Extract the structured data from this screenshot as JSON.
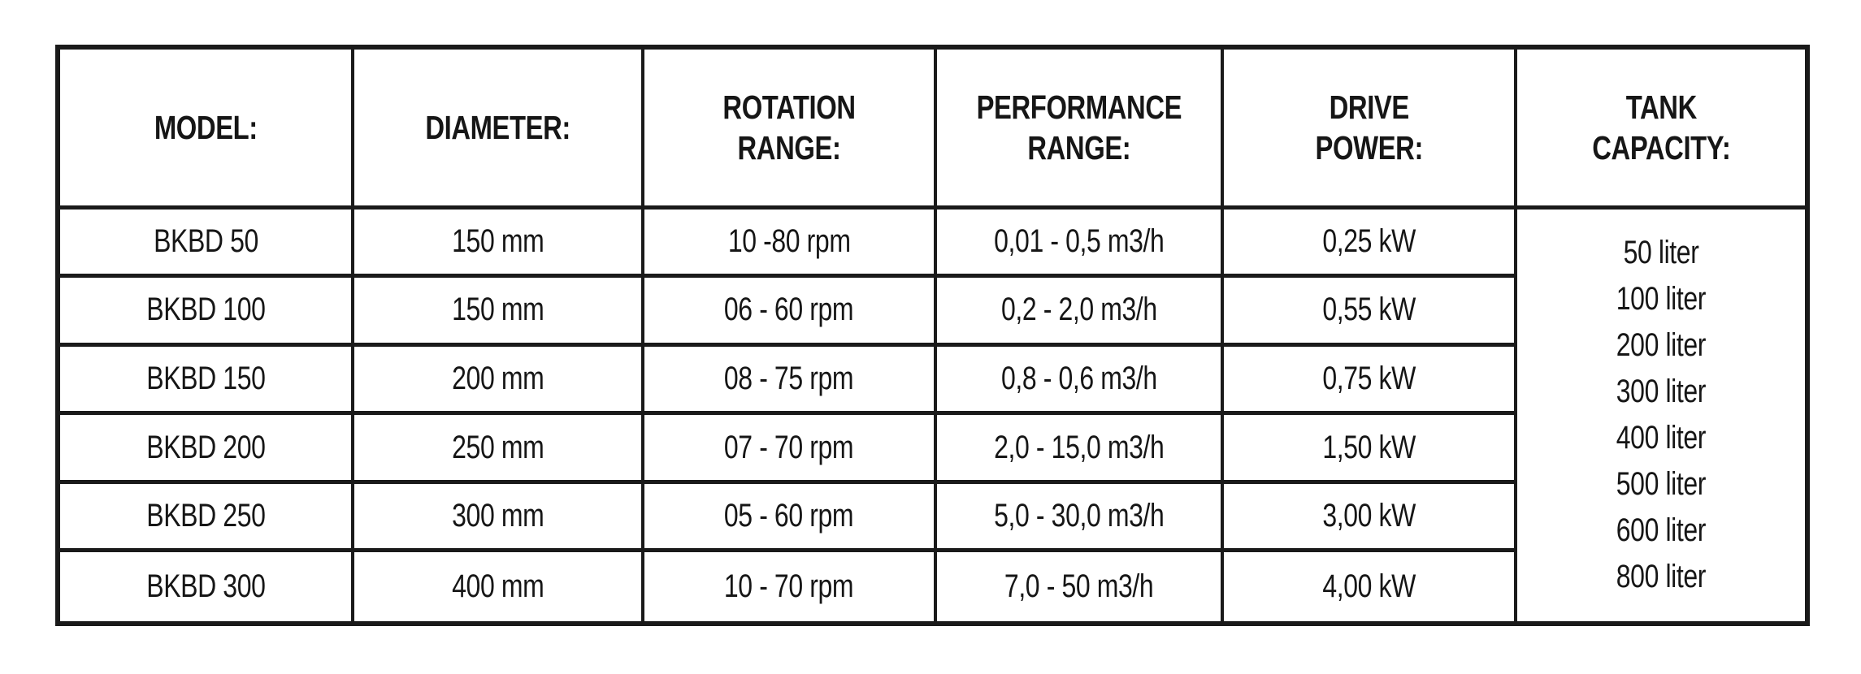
{
  "chart_data": {
    "type": "table",
    "title": "BKBD mixer specification table",
    "columns": [
      "MODEL:",
      "DIAMETER:",
      "ROTATION RANGE:",
      "PERFORMANCE RANGE:",
      "DRIVE POWER:",
      "TANK CAPACITY:"
    ],
    "rows": [
      [
        "BKBD 50",
        "150 mm",
        "10 -80 rpm",
        "0,01 - 0,5 m3/h",
        "0,25 kW"
      ],
      [
        "BKBD 100",
        "150 mm",
        "06 - 60 rpm",
        "0,2 - 2,0 m3/h",
        "0,55 kW"
      ],
      [
        "BKBD 150",
        "200 mm",
        "08 - 75 rpm",
        "0,8 - 0,6 m3/h",
        "0,75 kW"
      ],
      [
        "BKBD 200",
        "250 mm",
        "07 - 70 rpm",
        "2,0 - 15,0 m3/h",
        "1,50 kW"
      ],
      [
        "BKBD 250",
        "300 mm",
        "05 - 60 rpm",
        "5,0 - 30,0 m3/h",
        "3,00 kW"
      ],
      [
        "BKBD 300",
        "400 mm",
        "10 - 70 rpm",
        "7,0 - 50 m3/h",
        "4,00 kW"
      ]
    ],
    "tank_capacity_list": [
      "50 liter",
      "100 liter",
      "200 liter",
      "300 liter",
      "400 liter",
      "500 liter",
      "600 liter",
      "800 liter"
    ],
    "layout": "TANK CAPACITY column is a single merged cell spanning all six data rows"
  },
  "table": {
    "headers": [
      "MODEL:",
      "DIAMETER:",
      "ROTATION\nRANGE:",
      "PERFORMANCE\nRANGE:",
      "DRIVE\nPOWER:",
      "TANK\nCAPACITY:"
    ],
    "rows": [
      {
        "model": "BKBD 50",
        "diameter": "150 mm",
        "rotation": "10 -80 rpm",
        "performance": "0,01 - 0,5 m3/h",
        "power": "0,25 kW"
      },
      {
        "model": "BKBD 100",
        "diameter": "150 mm",
        "rotation": "06 - 60 rpm",
        "performance": "0,2 - 2,0 m3/h",
        "power": "0,55 kW"
      },
      {
        "model": "BKBD 150",
        "diameter": "200 mm",
        "rotation": "08 - 75 rpm",
        "performance": "0,8 - 0,6 m3/h",
        "power": "0,75 kW"
      },
      {
        "model": "BKBD 200",
        "diameter": "250 mm",
        "rotation": "07 - 70 rpm",
        "performance": "2,0 - 15,0 m3/h",
        "power": "1,50 kW"
      },
      {
        "model": "BKBD 250",
        "diameter": "300 mm",
        "rotation": "05 - 60 rpm",
        "performance": "5,0 - 30,0 m3/h",
        "power": "3,00 kW"
      },
      {
        "model": "BKBD 300",
        "diameter": "400 mm",
        "rotation": "10 - 70 rpm",
        "performance": "7,0 - 50 m3/h",
        "power": "4,00 kW"
      }
    ],
    "tank": [
      "50 liter",
      "100 liter",
      "200 liter",
      "300 liter",
      "400 liter",
      "500 liter",
      "600 liter",
      "800 liter"
    ]
  },
  "colors": {
    "border": "#1a1a1a",
    "text": "#161616",
    "background": "#ffffff"
  }
}
